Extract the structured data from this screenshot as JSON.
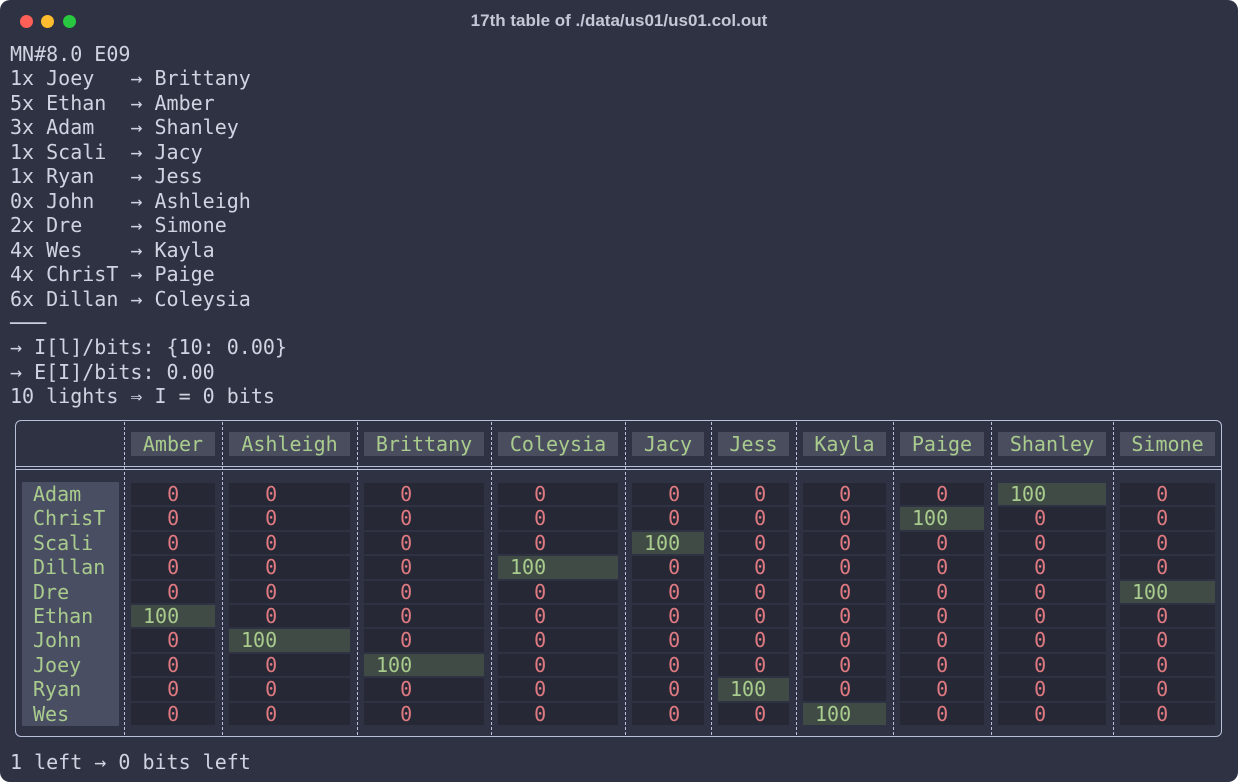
{
  "window": {
    "title": "17th table of ./data/us01/us01.col.out"
  },
  "lines": [
    "MN#8.0 E09",
    "1x Joey   → Brittany",
    "5x Ethan  → Amber",
    "3x Adam   → Shanley",
    "1x Scali  → Jacy",
    "1x Ryan   → Jess",
    "0x John   → Ashleigh",
    "2x Dre    → Simone",
    "4x Wes    → Kayla",
    "4x ChrisT → Paige",
    "6x Dillan → Coleysia",
    "───",
    "→ I[l]/bits: {10: 0.00}",
    "→ E[I]/bits: 0.00",
    "10 lights ⇒ I = 0 bits"
  ],
  "table": {
    "columns": [
      "Amber",
      "Ashleigh",
      "Brittany",
      "Coleysia",
      "Jacy",
      "Jess",
      "Kayla",
      "Paige",
      "Shanley",
      "Simone"
    ],
    "rows": [
      {
        "name": "Adam",
        "cells": [
          0,
          0,
          0,
          0,
          0,
          0,
          0,
          0,
          100,
          0
        ]
      },
      {
        "name": "ChrisT",
        "cells": [
          0,
          0,
          0,
          0,
          0,
          0,
          0,
          100,
          0,
          0
        ]
      },
      {
        "name": "Scali",
        "cells": [
          0,
          0,
          0,
          0,
          100,
          0,
          0,
          0,
          0,
          0
        ]
      },
      {
        "name": "Dillan",
        "cells": [
          0,
          0,
          0,
          100,
          0,
          0,
          0,
          0,
          0,
          0
        ]
      },
      {
        "name": "Dre",
        "cells": [
          0,
          0,
          0,
          0,
          0,
          0,
          0,
          0,
          0,
          100
        ]
      },
      {
        "name": "Ethan",
        "cells": [
          100,
          0,
          0,
          0,
          0,
          0,
          0,
          0,
          0,
          0
        ]
      },
      {
        "name": "John",
        "cells": [
          0,
          100,
          0,
          0,
          0,
          0,
          0,
          0,
          0,
          0
        ]
      },
      {
        "name": "Joey",
        "cells": [
          0,
          0,
          100,
          0,
          0,
          0,
          0,
          0,
          0,
          0
        ]
      },
      {
        "name": "Ryan",
        "cells": [
          0,
          0,
          0,
          0,
          0,
          100,
          0,
          0,
          0,
          0
        ]
      },
      {
        "name": "Wes",
        "cells": [
          0,
          0,
          0,
          0,
          0,
          0,
          100,
          0,
          0,
          0
        ]
      }
    ]
  },
  "footer": "1 left → 0 bits left"
}
